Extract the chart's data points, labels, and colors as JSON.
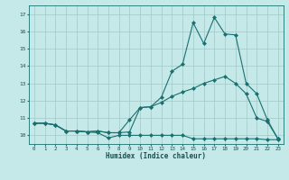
{
  "xlabel": "Humidex (Indice chaleur)",
  "bg_color": "#c5e8e8",
  "grid_color": "#a0c8c8",
  "line_color": "#1a7070",
  "xlim": [
    -0.5,
    23.5
  ],
  "ylim": [
    9.5,
    17.5
  ],
  "xticks": [
    0,
    1,
    2,
    3,
    4,
    5,
    6,
    7,
    8,
    9,
    10,
    11,
    12,
    13,
    14,
    15,
    16,
    17,
    18,
    19,
    20,
    21,
    22,
    23
  ],
  "yticks": [
    10,
    11,
    12,
    13,
    14,
    15,
    16,
    17
  ],
  "line1_x": [
    0,
    1,
    2,
    3,
    4,
    5,
    6,
    7,
    8,
    9,
    10,
    11,
    12,
    13,
    14,
    15,
    16,
    17,
    18,
    19,
    20,
    21,
    22,
    23
  ],
  "line1_y": [
    10.7,
    10.7,
    10.6,
    10.25,
    10.25,
    10.2,
    10.15,
    9.85,
    10.0,
    10.0,
    10.0,
    10.0,
    10.0,
    10.0,
    10.0,
    9.8,
    9.8,
    9.8,
    9.8,
    9.8,
    9.8,
    9.8,
    9.75,
    9.75
  ],
  "line2_x": [
    0,
    1,
    2,
    3,
    4,
    5,
    6,
    7,
    8,
    9,
    10,
    11,
    12,
    13,
    14,
    15,
    16,
    17,
    18,
    19,
    20,
    21,
    22,
    23
  ],
  "line2_y": [
    10.7,
    10.7,
    10.6,
    10.25,
    10.25,
    10.2,
    10.25,
    10.15,
    10.15,
    10.2,
    11.6,
    11.65,
    11.9,
    12.25,
    12.5,
    12.7,
    13.0,
    13.2,
    13.4,
    13.0,
    12.4,
    11.0,
    10.8,
    9.8
  ],
  "line3_x": [
    0,
    1,
    2,
    3,
    4,
    5,
    6,
    7,
    8,
    9,
    10,
    11,
    12,
    13,
    14,
    15,
    16,
    17,
    18,
    19,
    20,
    21,
    22,
    23
  ],
  "line3_y": [
    10.7,
    10.7,
    10.6,
    10.25,
    10.25,
    10.2,
    10.25,
    10.15,
    10.15,
    10.9,
    11.6,
    11.65,
    12.2,
    13.7,
    14.1,
    16.5,
    15.3,
    16.8,
    15.85,
    15.8,
    13.0,
    12.4,
    10.9,
    9.8
  ]
}
